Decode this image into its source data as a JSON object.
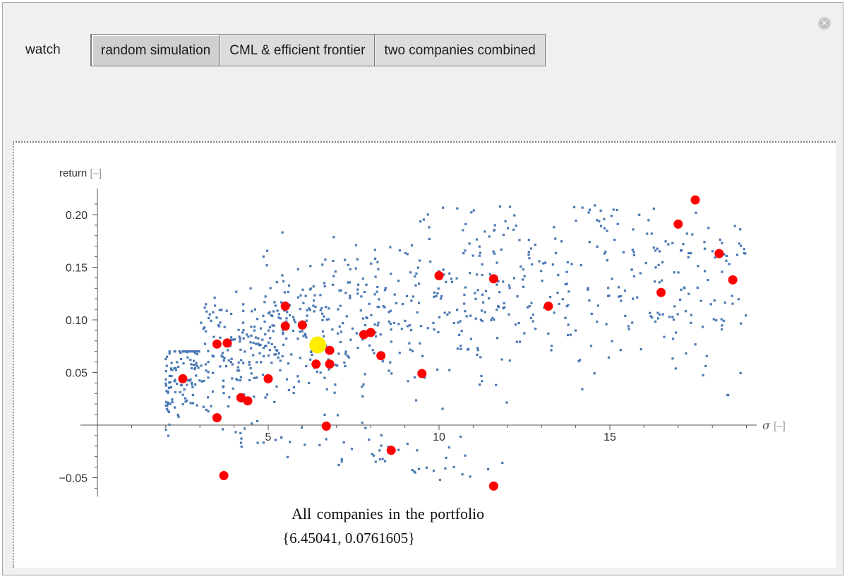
{
  "window": {
    "close_icon": "close-circle-icon",
    "close_glyph": "✕"
  },
  "controls": {
    "watch_label": "watch",
    "tabs": [
      {
        "label": "random simulation",
        "selected": true
      },
      {
        "label": "CML & efficient frontier",
        "selected": false
      },
      {
        "label": "two companies combined",
        "selected": false
      }
    ]
  },
  "output": {
    "caption": "All companies in the portfolio",
    "coordinates": "{6.45041, 0.0761605}"
  },
  "chart_data": {
    "type": "scatter",
    "ylabel": "return",
    "ylabel_unit": "[–]",
    "xlabel": "σ",
    "xlabel_unit": "[–]",
    "x_ticks": [
      5,
      10,
      15
    ],
    "x_tick_labels": [
      "5",
      "10",
      "15"
    ],
    "y_ticks": [
      -0.05,
      0.05,
      0.1,
      0.15,
      0.2
    ],
    "y_tick_labels": [
      "−0.05",
      "0.05",
      "0.10",
      "0.15",
      "0.20"
    ],
    "xlim": [
      -0.5,
      19.5
    ],
    "ylim": [
      -0.068,
      0.225
    ],
    "grid": false,
    "colors": {
      "simulation": "#4a78b4",
      "companies": "#ff0000",
      "portfolio": "#ffee00",
      "axis": "#555555"
    },
    "series": [
      {
        "role": "companies",
        "points": [
          [
            2.5,
            0.044
          ],
          [
            3.5,
            0.077
          ],
          [
            3.8,
            0.078
          ],
          [
            3.5,
            0.007
          ],
          [
            3.7,
            -0.048
          ],
          [
            4.2,
            0.026
          ],
          [
            4.4,
            0.023
          ],
          [
            5.0,
            0.044
          ],
          [
            5.5,
            0.113
          ],
          [
            5.5,
            0.094
          ],
          [
            6.0,
            0.095
          ],
          [
            6.4,
            0.058
          ],
          [
            6.8,
            0.058
          ],
          [
            6.8,
            0.071
          ],
          [
            6.7,
            -0.001
          ],
          [
            7.8,
            0.086
          ],
          [
            8.0,
            0.088
          ],
          [
            8.3,
            0.066
          ],
          [
            8.6,
            -0.024
          ],
          [
            9.5,
            0.049
          ],
          [
            10.0,
            0.142
          ],
          [
            11.6,
            0.139
          ],
          [
            11.6,
            -0.058
          ],
          [
            13.2,
            0.113
          ],
          [
            16.5,
            0.126
          ],
          [
            17.0,
            0.191
          ],
          [
            17.5,
            0.214
          ],
          [
            18.2,
            0.163
          ],
          [
            18.6,
            0.138
          ]
        ]
      },
      {
        "role": "portfolio",
        "points": [
          [
            6.45041,
            0.0761605
          ]
        ]
      },
      {
        "role": "simulation",
        "count": 1000,
        "note_sampling": "random portfolios"
      }
    ]
  }
}
